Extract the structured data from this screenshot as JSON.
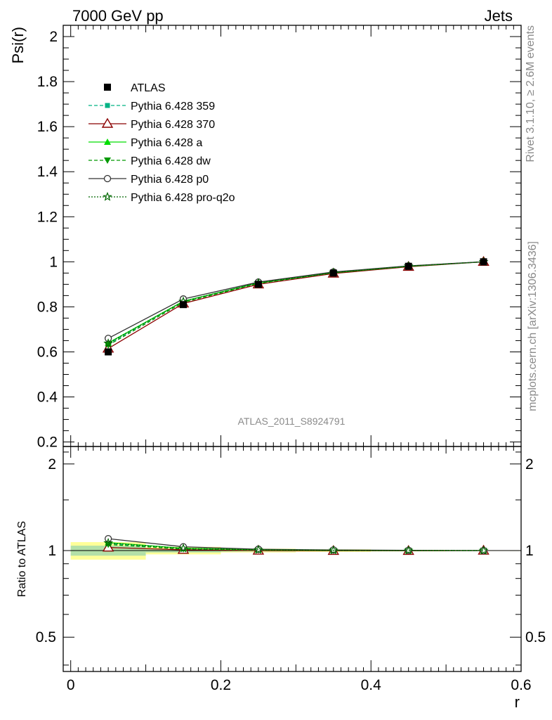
{
  "header": {
    "left": "7000 GeV pp",
    "right": "Jets"
  },
  "side_text": {
    "rivet": "Rivet 3.1.10, ≥ 2.6M events",
    "mcplots": "mcplots.cern.ch [arXiv:1306.3436]"
  },
  "watermark": "ATLAS_2011_S8924791",
  "colors": {
    "atlas": "#000000",
    "p359": "#00b385",
    "p370": "#8b0000",
    "pa": "#00dd00",
    "pdw": "#009900",
    "pp0": "#333333",
    "pq2o": "#006600"
  },
  "chart_data": {
    "type": "line",
    "xlabel": "r",
    "ylabel_main": "Psi(r)",
    "ylabel_ratio": "Ratio to ATLAS",
    "xlim": [
      -0.01,
      0.6
    ],
    "ylim_main": [
      0.18,
      2.05
    ],
    "ylim_ratio": [
      0.38,
      2.3
    ],
    "ratio_scale": "log",
    "x_ticks": [
      "0",
      "0.2",
      "0.4",
      "0.6"
    ],
    "y_ticks_main": [
      "0.2",
      "0.4",
      "0.6",
      "0.8",
      "1",
      "1.2",
      "1.4",
      "1.6",
      "1.8",
      "2"
    ],
    "y_ticks_ratio": [
      "0.5",
      "1",
      "2"
    ],
    "x": [
      0.05,
      0.15,
      0.25,
      0.35,
      0.45,
      0.55
    ],
    "data": {
      "name": "ATLAS",
      "values": [
        0.6,
        0.81,
        0.9,
        0.95,
        0.98,
        1.0
      ],
      "band_edges": [
        0.0,
        0.1,
        0.2,
        0.3,
        0.4,
        0.5,
        0.6
      ],
      "stat_band": [
        0.04,
        0.015,
        0.008,
        0.005,
        0.003,
        0.002
      ],
      "total_band": [
        0.07,
        0.03,
        0.015,
        0.01,
        0.006,
        0.003
      ]
    },
    "series": [
      {
        "name": "Pythia 6.428 359",
        "values": [
          0.635,
          0.825,
          0.907,
          0.953,
          0.981,
          1.0
        ],
        "marker": "square-small",
        "dash": "dashed",
        "color_key": "p359"
      },
      {
        "name": "Pythia 6.428 370",
        "values": [
          0.615,
          0.815,
          0.9,
          0.948,
          0.978,
          1.0
        ],
        "marker": "triangle-open",
        "dash": "solid",
        "color_key": "p370"
      },
      {
        "name": "Pythia 6.428 a",
        "values": [
          0.64,
          0.825,
          0.906,
          0.952,
          0.98,
          1.0
        ],
        "marker": "triangle-filled",
        "dash": "solid",
        "color_key": "pa"
      },
      {
        "name": "Pythia 6.428 dw",
        "values": [
          0.63,
          0.82,
          0.904,
          0.951,
          0.98,
          1.0
        ],
        "marker": "triangle-down",
        "dash": "dashed",
        "color_key": "pdw"
      },
      {
        "name": "Pythia 6.428 p0",
        "values": [
          0.66,
          0.835,
          0.91,
          0.955,
          0.982,
          1.0
        ],
        "marker": "circle-open",
        "dash": "solid",
        "color_key": "pp0"
      },
      {
        "name": "Pythia 6.428 pro-q2o",
        "values": [
          0.638,
          0.824,
          0.906,
          0.952,
          0.981,
          1.0
        ],
        "marker": "star",
        "dash": "dotted",
        "color_key": "pq2o"
      }
    ]
  }
}
